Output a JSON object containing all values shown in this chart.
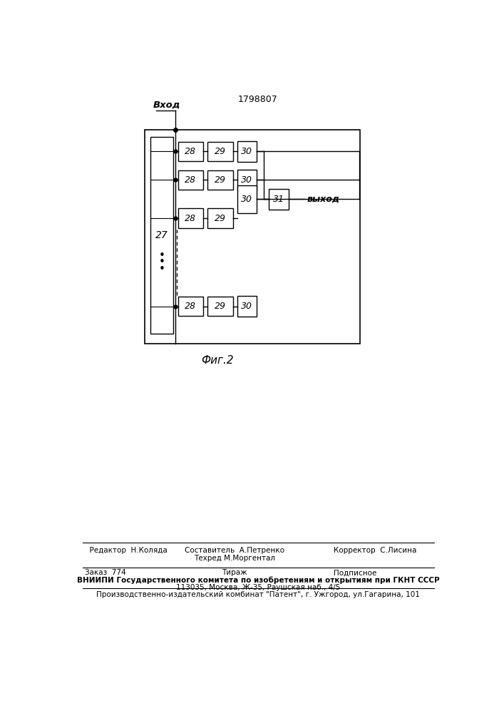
{
  "title": "1798807",
  "fig_label": "Фиг.2",
  "input_label": "Вход",
  "output_label": "выход",
  "block27_label": "27",
  "block31_label": "31",
  "labels_28": [
    "28",
    "28",
    "28",
    "28"
  ],
  "labels_29": [
    "29",
    "29",
    "29",
    "29"
  ],
  "labels_30": [
    "30",
    "30",
    "30",
    "30"
  ],
  "footer_r1": [
    "  Редактор  Н.Коляда",
    "Составитель  А.Петренко",
    "Корректор  С.Лисина"
  ],
  "footer_r2": [
    "Техред М.Моргентал"
  ],
  "footer_r3": [
    "Заказ  774",
    "Тираж",
    "Подписное"
  ],
  "footer_vniipи": "ВНИИПИ Государственного комитета по изобретениям и открытиям при ГКНТ СССР",
  "footer_addr": "113035, Москва, Ж-35, Раушская наб., 4/5",
  "footer_prod": "Производственно-издательский комбинат \"Патент\", г. Ужгород, ул.Гагарина, 101"
}
